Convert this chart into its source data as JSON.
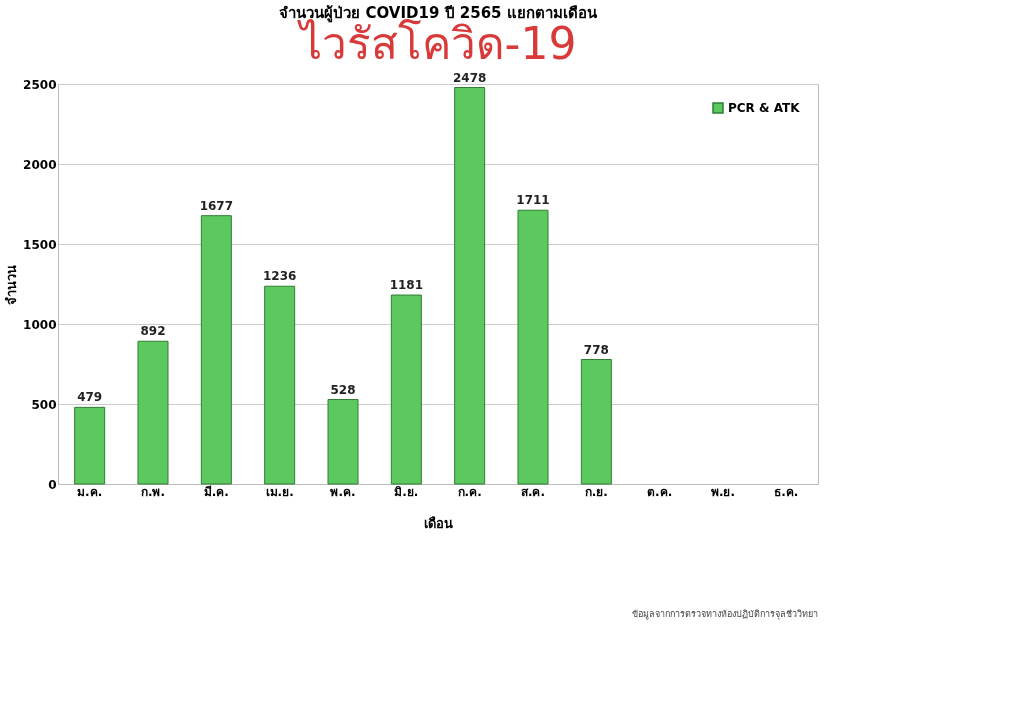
{
  "chart_data": {
    "type": "bar",
    "title": "จำนวนผู้ป่วย COVID19 ปี 2565 แยกตามเดือน",
    "subtitle": "ไวรัสโควิด-19",
    "xlabel": "เดือน",
    "ylabel": "จำนวน",
    "categories": [
      "ม.ค.",
      "ก.พ.",
      "มี.ค.",
      "เม.ย.",
      "พ.ค.",
      "มิ.ย.",
      "ก.ค.",
      "ส.ค.",
      "ก.ย.",
      "ต.ค.",
      "พ.ย.",
      "ธ.ค."
    ],
    "series": [
      {
        "name": "PCR & ATK",
        "color": "#5cc95e",
        "values": [
          479,
          892,
          1677,
          1236,
          528,
          1181,
          2478,
          1711,
          778,
          null,
          null,
          null
        ]
      }
    ],
    "ylim": [
      0,
      2500
    ],
    "yticks": [
      0,
      500,
      1000,
      1500,
      2000,
      2500
    ],
    "grid": "y",
    "legend": "top right",
    "data_labels": true,
    "annotations": [
      "ข้อมูลจากการตรวจทางห้องปฏิบัติการจุลชีววิทยา"
    ]
  }
}
